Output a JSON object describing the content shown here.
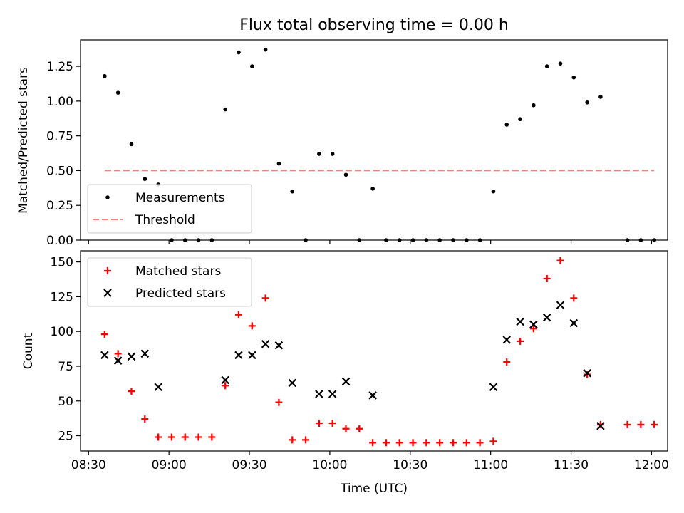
{
  "chart_data": [
    {
      "type": "scatter",
      "title": "Flux total observing time = 0.00 h",
      "xlabel": "",
      "ylabel": "Matched/Predicted stars",
      "xlim": [
        "08:27",
        "12:06"
      ],
      "ylim": [
        0,
        1.44
      ],
      "xticks": [
        "08:30",
        "09:00",
        "09:30",
        "10:00",
        "10:30",
        "11:00",
        "11:30",
        "12:00"
      ],
      "yticks": [
        "0.00",
        "0.25",
        "0.50",
        "0.75",
        "1.00",
        "1.25"
      ],
      "legend_position": "lower-left",
      "series": [
        {
          "name": "Measurements",
          "style": "dot",
          "color": "#000000",
          "points": [
            [
              "08:36",
              1.18
            ],
            [
              "08:41",
              1.06
            ],
            [
              "08:46",
              0.69
            ],
            [
              "08:51",
              0.44
            ],
            [
              "08:56",
              0.4
            ],
            [
              "09:01",
              0.0
            ],
            [
              "09:06",
              0.0
            ],
            [
              "09:11",
              0.0
            ],
            [
              "09:16",
              0.0
            ],
            [
              "09:21",
              0.94
            ],
            [
              "09:26",
              1.35
            ],
            [
              "09:31",
              1.25
            ],
            [
              "09:36",
              1.37
            ],
            [
              "09:41",
              0.55
            ],
            [
              "09:46",
              0.35
            ],
            [
              "09:51",
              0.0
            ],
            [
              "09:56",
              0.62
            ],
            [
              "10:01",
              0.62
            ],
            [
              "10:06",
              0.47
            ],
            [
              "10:11",
              0.0
            ],
            [
              "10:16",
              0.37
            ],
            [
              "10:21",
              0.0
            ],
            [
              "10:26",
              0.0
            ],
            [
              "10:31",
              0.0
            ],
            [
              "10:36",
              0.0
            ],
            [
              "10:41",
              0.0
            ],
            [
              "10:46",
              0.0
            ],
            [
              "10:51",
              0.0
            ],
            [
              "10:56",
              0.0
            ],
            [
              "11:01",
              0.35
            ],
            [
              "11:06",
              0.83
            ],
            [
              "11:11",
              0.87
            ],
            [
              "11:16",
              0.97
            ],
            [
              "11:21",
              1.25
            ],
            [
              "11:26",
              1.27
            ],
            [
              "11:31",
              1.17
            ],
            [
              "11:36",
              0.99
            ],
            [
              "11:41",
              1.03
            ],
            [
              "11:51",
              0.0
            ],
            [
              "11:56",
              0.0
            ],
            [
              "12:01",
              0.0
            ]
          ]
        },
        {
          "name": "Threshold",
          "style": "dashed-line",
          "color": "#ff7f7f",
          "points": [
            [
              "08:36",
              0.5
            ],
            [
              "12:01",
              0.5
            ]
          ]
        }
      ]
    },
    {
      "type": "scatter",
      "title": "",
      "xlabel": "Time (UTC)",
      "ylabel": "Count",
      "xlim": [
        "08:27",
        "12:06"
      ],
      "ylim": [
        14,
        158
      ],
      "xticks": [
        "08:30",
        "09:00",
        "09:30",
        "10:00",
        "10:30",
        "11:00",
        "11:30",
        "12:00"
      ],
      "yticks": [
        "25",
        "50",
        "75",
        "100",
        "125",
        "150"
      ],
      "legend_position": "top-left",
      "series": [
        {
          "name": "Matched stars",
          "style": "plus",
          "color": "#ff0000",
          "points": [
            [
              "08:36",
              98
            ],
            [
              "08:41",
              84
            ],
            [
              "08:46",
              57
            ],
            [
              "08:51",
              37
            ],
            [
              "08:56",
              24
            ],
            [
              "09:01",
              24
            ],
            [
              "09:06",
              24
            ],
            [
              "09:11",
              24
            ],
            [
              "09:16",
              24
            ],
            [
              "09:21",
              61
            ],
            [
              "09:26",
              112
            ],
            [
              "09:31",
              104
            ],
            [
              "09:36",
              124
            ],
            [
              "09:41",
              49
            ],
            [
              "09:46",
              22
            ],
            [
              "09:51",
              22
            ],
            [
              "09:56",
              34
            ],
            [
              "10:01",
              34
            ],
            [
              "10:06",
              30
            ],
            [
              "10:11",
              30
            ],
            [
              "10:16",
              20
            ],
            [
              "10:21",
              20
            ],
            [
              "10:26",
              20
            ],
            [
              "10:31",
              20
            ],
            [
              "10:36",
              20
            ],
            [
              "10:41",
              20
            ],
            [
              "10:46",
              20
            ],
            [
              "10:51",
              20
            ],
            [
              "10:56",
              20
            ],
            [
              "11:01",
              21
            ],
            [
              "11:06",
              78
            ],
            [
              "11:11",
              93
            ],
            [
              "11:16",
              102
            ],
            [
              "11:21",
              138
            ],
            [
              "11:26",
              151
            ],
            [
              "11:31",
              124
            ],
            [
              "11:36",
              69
            ],
            [
              "11:41",
              33
            ],
            [
              "11:51",
              33
            ],
            [
              "11:56",
              33
            ],
            [
              "12:01",
              33
            ]
          ]
        },
        {
          "name": "Predicted stars",
          "style": "x",
          "color": "#000000",
          "points": [
            [
              "08:36",
              83
            ],
            [
              "08:41",
              79
            ],
            [
              "08:46",
              82
            ],
            [
              "08:51",
              84
            ],
            [
              "08:56",
              60
            ],
            [
              "09:21",
              65
            ],
            [
              "09:26",
              83
            ],
            [
              "09:31",
              83
            ],
            [
              "09:36",
              91
            ],
            [
              "09:41",
              90
            ],
            [
              "09:46",
              63
            ],
            [
              "09:56",
              55
            ],
            [
              "10:01",
              55
            ],
            [
              "10:06",
              64
            ],
            [
              "10:16",
              54
            ],
            [
              "11:01",
              60
            ],
            [
              "11:06",
              94
            ],
            [
              "11:11",
              107
            ],
            [
              "11:16",
              105
            ],
            [
              "11:21",
              110
            ],
            [
              "11:26",
              119
            ],
            [
              "11:31",
              106
            ],
            [
              "11:36",
              70
            ],
            [
              "11:41",
              32
            ]
          ]
        }
      ]
    }
  ]
}
